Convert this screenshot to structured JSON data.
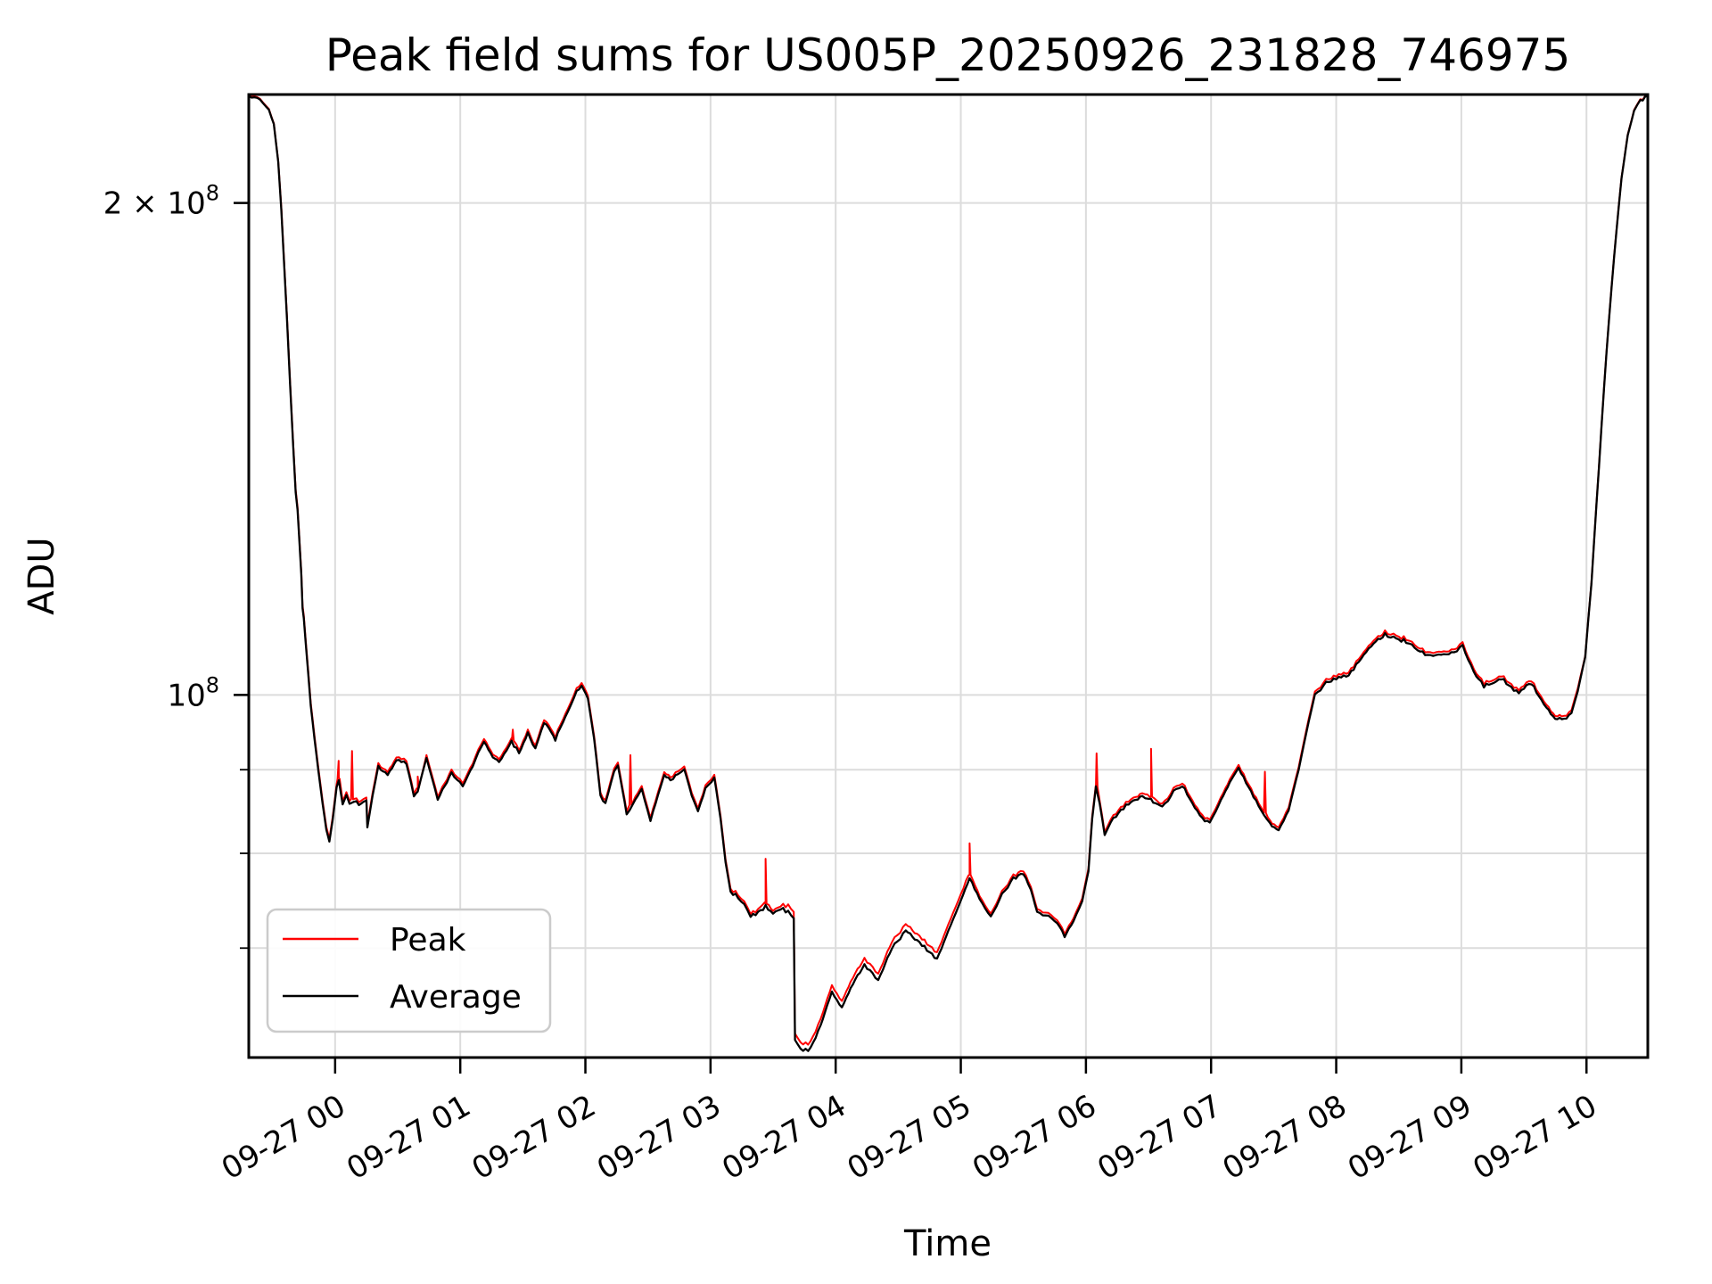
{
  "chart_data": {
    "type": "line",
    "title": "Peak field sums for US005P_20250926_231828_746975",
    "xlabel": "Time",
    "ylabel": "ADU",
    "grid": true,
    "grid_color": "#dcdcdc",
    "legend": {
      "position": "lower left",
      "entries": [
        "Peak",
        "Average"
      ]
    },
    "x_axis": {
      "unit": "hours relative to 2025-09-27 00:00",
      "min_hours": -0.69,
      "max_hours": 10.49,
      "tick_hours": [
        0,
        1,
        2,
        3,
        4,
        5,
        6,
        7,
        8,
        9,
        10
      ],
      "tick_labels": [
        "09-27 00",
        "09-27 01",
        "09-27 02",
        "09-27 03",
        "09-27 04",
        "09-27 05",
        "09-27 06",
        "09-27 07",
        "09-27 08",
        "09-27 09",
        "09-27 10"
      ]
    },
    "y_axis": {
      "scale": "log",
      "min": 60000000,
      "max": 233000000,
      "major_ticks": [
        {
          "value": 200000000,
          "mantissa": "2 × 10",
          "exponent": "8"
        },
        {
          "value": 100000000,
          "mantissa": "10",
          "exponent": "8"
        }
      ],
      "minor_tick_values": [
        90000000,
        80000000,
        70000000
      ],
      "grid_values": [
        200000000,
        100000000,
        90000000,
        80000000,
        70000000
      ]
    },
    "series": [
      {
        "name": "Peak",
        "color": "#ff0000",
        "derived_from": "Average",
        "offset_factor": 1.004,
        "offset_factor_valley": 1.009,
        "valley_range_hours": [
          3.6,
          5.0
        ],
        "spikes_t_hours_top_1e8": [
          [
            0.028,
            0.912
          ],
          [
            0.135,
            0.925
          ],
          [
            0.66,
            0.892
          ],
          [
            1.42,
            0.952
          ],
          [
            2.36,
            0.918
          ],
          [
            3.44,
            0.792
          ],
          [
            5.07,
            0.812
          ],
          [
            6.085,
            0.922
          ],
          [
            6.52,
            0.926
          ],
          [
            7.43,
            0.9
          ]
        ]
      },
      {
        "name": "Average",
        "color": "#000000",
        "points_t_hours_value_1e8": [
          [
            -0.69,
            2.325
          ],
          [
            -0.6,
            2.315
          ],
          [
            -0.53,
            2.28
          ],
          [
            -0.49,
            2.235
          ],
          [
            -0.455,
            2.12
          ],
          [
            -0.43,
            1.98
          ],
          [
            -0.41,
            1.85
          ],
          [
            -0.385,
            1.7
          ],
          [
            -0.36,
            1.55
          ],
          [
            -0.335,
            1.42
          ],
          [
            -0.315,
            1.33
          ],
          [
            -0.3,
            1.298
          ],
          [
            -0.29,
            1.26
          ],
          [
            -0.27,
            1.185
          ],
          [
            -0.26,
            1.13
          ],
          [
            -0.25,
            1.114
          ],
          [
            -0.235,
            1.075
          ],
          [
            -0.215,
            1.03
          ],
          [
            -0.195,
            0.985
          ],
          [
            -0.165,
            0.94
          ],
          [
            -0.135,
            0.9
          ],
          [
            -0.1,
            0.858
          ],
          [
            -0.07,
            0.827
          ],
          [
            -0.046,
            0.814
          ],
          [
            -0.02,
            0.838
          ],
          [
            0.012,
            0.878
          ],
          [
            0.03,
            0.886
          ],
          [
            0.06,
            0.858
          ],
          [
            0.09,
            0.868
          ],
          [
            0.115,
            0.857
          ],
          [
            0.15,
            0.862
          ],
          [
            0.19,
            0.857
          ],
          [
            0.225,
            0.861
          ],
          [
            0.25,
            0.862
          ],
          [
            0.258,
            0.83
          ],
          [
            0.3,
            0.868
          ],
          [
            0.345,
            0.904
          ],
          [
            0.42,
            0.893
          ],
          [
            0.49,
            0.913
          ],
          [
            0.57,
            0.908
          ],
          [
            0.63,
            0.868
          ],
          [
            0.66,
            0.873
          ],
          [
            0.73,
            0.915
          ],
          [
            0.82,
            0.863
          ],
          [
            0.93,
            0.896
          ],
          [
            1.02,
            0.879
          ],
          [
            1.1,
            0.905
          ],
          [
            1.19,
            0.938
          ],
          [
            1.26,
            0.915
          ],
          [
            1.31,
            0.909
          ],
          [
            1.41,
            0.936
          ],
          [
            1.47,
            0.922
          ],
          [
            1.54,
            0.947
          ],
          [
            1.6,
            0.926
          ],
          [
            1.67,
            0.963
          ],
          [
            1.76,
            0.94
          ],
          [
            1.86,
            0.977
          ],
          [
            1.93,
            1.005
          ],
          [
            1.97,
            1.012
          ],
          [
            2.02,
            0.995
          ],
          [
            2.07,
            0.94
          ],
          [
            2.12,
            0.868
          ],
          [
            2.16,
            0.857
          ],
          [
            2.23,
            0.899
          ],
          [
            2.26,
            0.905
          ],
          [
            2.33,
            0.846
          ],
          [
            2.4,
            0.862
          ],
          [
            2.45,
            0.875
          ],
          [
            2.52,
            0.838
          ],
          [
            2.58,
            0.868
          ],
          [
            2.63,
            0.892
          ],
          [
            2.68,
            0.886
          ],
          [
            2.74,
            0.895
          ],
          [
            2.79,
            0.901
          ],
          [
            2.85,
            0.868
          ],
          [
            2.9,
            0.849
          ],
          [
            2.96,
            0.876
          ],
          [
            3.03,
            0.891
          ],
          [
            3.08,
            0.84
          ],
          [
            3.12,
            0.79
          ],
          [
            3.16,
            0.758
          ],
          [
            3.22,
            0.752
          ],
          [
            3.27,
            0.746
          ],
          [
            3.32,
            0.732
          ],
          [
            3.38,
            0.736
          ],
          [
            3.44,
            0.742
          ],
          [
            3.5,
            0.735
          ],
          [
            3.56,
            0.74
          ],
          [
            3.62,
            0.737
          ],
          [
            3.665,
            0.73
          ],
          [
            3.675,
            0.615
          ],
          [
            3.72,
            0.607
          ],
          [
            3.78,
            0.606
          ],
          [
            3.82,
            0.612
          ],
          [
            3.88,
            0.628
          ],
          [
            3.97,
            0.658
          ],
          [
            4.05,
            0.643
          ],
          [
            4.12,
            0.662
          ],
          [
            4.23,
            0.684
          ],
          [
            4.34,
            0.669
          ],
          [
            4.45,
            0.7
          ],
          [
            4.56,
            0.717
          ],
          [
            4.65,
            0.708
          ],
          [
            4.75,
            0.696
          ],
          [
            4.81,
            0.689
          ],
          [
            4.9,
            0.717
          ],
          [
            5.0,
            0.748
          ],
          [
            5.07,
            0.773
          ],
          [
            5.15,
            0.75
          ],
          [
            5.24,
            0.731
          ],
          [
            5.33,
            0.755
          ],
          [
            5.42,
            0.772
          ],
          [
            5.5,
            0.778
          ],
          [
            5.56,
            0.76
          ],
          [
            5.61,
            0.736
          ],
          [
            5.7,
            0.732
          ],
          [
            5.77,
            0.726
          ],
          [
            5.83,
            0.712
          ],
          [
            5.9,
            0.726
          ],
          [
            5.97,
            0.748
          ],
          [
            6.02,
            0.78
          ],
          [
            6.05,
            0.84
          ],
          [
            6.08,
            0.878
          ],
          [
            6.11,
            0.858
          ],
          [
            6.15,
            0.822
          ],
          [
            6.22,
            0.84
          ],
          [
            6.3,
            0.853
          ],
          [
            6.38,
            0.862
          ],
          [
            6.45,
            0.868
          ],
          [
            6.52,
            0.863
          ],
          [
            6.61,
            0.853
          ],
          [
            6.7,
            0.872
          ],
          [
            6.77,
            0.881
          ],
          [
            6.85,
            0.858
          ],
          [
            6.93,
            0.84
          ],
          [
            6.99,
            0.835
          ],
          [
            7.08,
            0.862
          ],
          [
            7.15,
            0.885
          ],
          [
            7.22,
            0.902
          ],
          [
            7.3,
            0.878
          ],
          [
            7.4,
            0.85
          ],
          [
            7.47,
            0.835
          ],
          [
            7.54,
            0.826
          ],
          [
            7.62,
            0.85
          ],
          [
            7.7,
            0.9
          ],
          [
            7.78,
            0.963
          ],
          [
            7.83,
            1.0
          ],
          [
            7.92,
            1.017
          ],
          [
            8.02,
            1.025
          ],
          [
            8.1,
            1.028
          ],
          [
            8.18,
            1.048
          ],
          [
            8.28,
            1.072
          ],
          [
            8.39,
            1.089
          ],
          [
            8.48,
            1.082
          ],
          [
            8.56,
            1.078
          ],
          [
            8.65,
            1.066
          ],
          [
            8.73,
            1.057
          ],
          [
            8.82,
            1.058
          ],
          [
            8.92,
            1.06
          ],
          [
            9.01,
            1.071
          ],
          [
            9.1,
            1.032
          ],
          [
            9.18,
            1.013
          ],
          [
            9.26,
            1.017
          ],
          [
            9.32,
            1.024
          ],
          [
            9.4,
            1.01
          ],
          [
            9.46,
            1.003
          ],
          [
            9.52,
            1.013
          ],
          [
            9.56,
            1.017
          ],
          [
            9.62,
            0.998
          ],
          [
            9.68,
            0.982
          ],
          [
            9.75,
            0.968
          ],
          [
            9.82,
            0.965
          ],
          [
            9.88,
            0.975
          ],
          [
            9.93,
            1.005
          ],
          [
            9.99,
            1.055
          ],
          [
            10.04,
            1.17
          ],
          [
            10.1,
            1.38
          ],
          [
            10.16,
            1.62
          ],
          [
            10.22,
            1.85
          ],
          [
            10.28,
            2.07
          ],
          [
            10.33,
            2.2
          ],
          [
            10.38,
            2.275
          ],
          [
            10.43,
            2.31
          ],
          [
            10.49,
            2.325
          ]
        ]
      }
    ]
  }
}
